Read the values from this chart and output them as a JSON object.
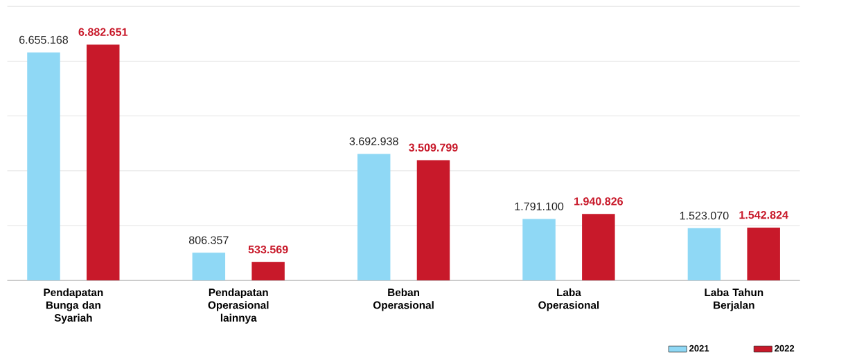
{
  "chart_data": {
    "type": "bar",
    "categories": [
      "Pendapatan Bunga dan Syariah",
      "Pendapatan Operasional lainnya",
      "Beban Operasional",
      "Laba Operasional",
      "Laba Tahun Berjalan"
    ],
    "series": [
      {
        "name": "2021",
        "color": "#8fd8f5",
        "values": [
          6655168,
          806357,
          3692938,
          1791100,
          1523070
        ],
        "value_labels": [
          "6.655.168",
          "806.357",
          "3.692.938",
          "1.791.100",
          "1.523.070"
        ]
      },
      {
        "name": "2022",
        "color": "#c8192a",
        "values": [
          6882651,
          533569,
          3509799,
          1940826,
          1542824
        ],
        "value_labels": [
          "6.882.651",
          "533.569",
          "3.509.799",
          "1.940.826",
          "1.542.824"
        ]
      }
    ],
    "ylim": [
      0,
      8000000
    ],
    "yticks": [
      {
        "value": 0,
        "label": null
      },
      {
        "value": 1600000,
        "label": null
      },
      {
        "value": 3200000,
        "label": null
      },
      {
        "value": 4800000,
        "label": null
      },
      {
        "value": 6400000,
        "label": null
      },
      {
        "value": 8000000,
        "label": null
      }
    ],
    "grid": "y",
    "tick_labels": "x",
    "legend": "bottom right"
  }
}
